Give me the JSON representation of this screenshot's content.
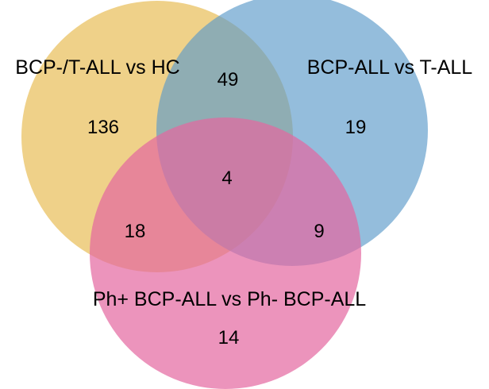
{
  "venn": {
    "sets": {
      "a": {
        "label": "BCP-/T-ALL vs HC",
        "color": "#e6b84a"
      },
      "b": {
        "label": "BCP-ALL vs T-ALL",
        "color": "#5b9ac9"
      },
      "c": {
        "label": "Ph+ BCP-ALL vs Ph- BCP-ALL",
        "color": "#e466a0"
      }
    },
    "regions": {
      "a_only": "136",
      "b_only": "19",
      "c_only": "14",
      "a_b": "49",
      "a_c": "18",
      "b_c": "9",
      "a_b_c": "4"
    }
  }
}
